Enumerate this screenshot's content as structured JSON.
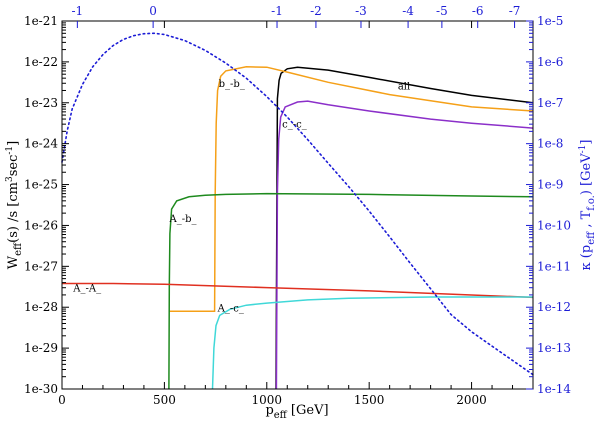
{
  "chart_data": {
    "type": "line",
    "xlabel": {
      "main": "p",
      "sub": "eff",
      "rest": " [GeV]"
    },
    "ylabel_left": {
      "p1": "W",
      "s1": "eff",
      "p2": "(s) /s    [cm",
      "sup1": "3",
      "p3": "sec",
      "sup2": "-1",
      "p4": "]"
    },
    "ylabel_right": {
      "p1": "κ (p",
      "s1": "eff",
      "p2": " , T",
      "s2": "f.o.",
      "p3": ")    [GeV",
      "sup1": "-1",
      "p4": "]"
    },
    "xlim": [
      0,
      2300
    ],
    "ylim_left_log10": [
      -30,
      -21
    ],
    "ylim_right_log10": [
      -14,
      -5
    ],
    "x_ticks": [
      0,
      500,
      1000,
      1500,
      2000
    ],
    "x_tick_labels": [
      "0",
      "500",
      "1000",
      "1500",
      "2000"
    ],
    "y_left_tick_labels": [
      "1e-21",
      "1e-22",
      "1e-23",
      "1e-24",
      "1e-25",
      "1e-26",
      "1e-27",
      "1e-28",
      "1e-29",
      "1e-30"
    ],
    "y_right_tick_labels": [
      "1e-5",
      "1e-6",
      "1e-7",
      "1e-8",
      "1e-9",
      "1e-10",
      "1e-11",
      "1e-12",
      "1e-13",
      "1e-14"
    ],
    "top_axis": {
      "color": "#1c1cd6",
      "ticks": [
        {
          "x": 75,
          "label": "-1"
        },
        {
          "x": 445,
          "label": "0"
        },
        {
          "x": 1050,
          "label": "-1"
        },
        {
          "x": 1240,
          "label": "-2"
        },
        {
          "x": 1460,
          "label": "-3"
        },
        {
          "x": 1690,
          "label": "-4"
        },
        {
          "x": 1855,
          "label": "-5"
        },
        {
          "x": 2030,
          "label": "-6"
        },
        {
          "x": 2210,
          "label": "-7"
        }
      ]
    },
    "series": [
      {
        "name": "all",
        "color": "#000000",
        "axis": "left",
        "points": [
          [
            1045,
            -30
          ],
          [
            1052,
            -22.9
          ],
          [
            1060,
            -22.45
          ],
          [
            1070,
            -22.28
          ],
          [
            1100,
            -22.17
          ],
          [
            1150,
            -22.13
          ],
          [
            1300,
            -22.2
          ],
          [
            1500,
            -22.38
          ],
          [
            1800,
            -22.65
          ],
          [
            2000,
            -22.82
          ],
          [
            2300,
            -23.0
          ]
        ]
      },
      {
        "name": "b_-b_",
        "color": "#f5a018",
        "axis": "left",
        "points": [
          [
            520,
            -28.1
          ],
          [
            745,
            -28.1
          ],
          [
            748,
            -25.2
          ],
          [
            753,
            -23.5
          ],
          [
            760,
            -22.7
          ],
          [
            775,
            -22.35
          ],
          [
            800,
            -22.22
          ],
          [
            900,
            -22.12
          ],
          [
            1000,
            -22.13
          ],
          [
            1100,
            -22.25
          ],
          [
            1300,
            -22.5
          ],
          [
            1600,
            -22.8
          ],
          [
            2000,
            -23.1
          ],
          [
            2300,
            -23.2
          ]
        ]
      },
      {
        "name": "c_-c_",
        "color": "#8b2fc9",
        "axis": "left",
        "points": [
          [
            1047,
            -30
          ],
          [
            1052,
            -25.2
          ],
          [
            1058,
            -23.9
          ],
          [
            1068,
            -23.35
          ],
          [
            1090,
            -23.1
          ],
          [
            1150,
            -22.98
          ],
          [
            1200,
            -22.96
          ],
          [
            1300,
            -23.05
          ],
          [
            1500,
            -23.2
          ],
          [
            1800,
            -23.4
          ],
          [
            2000,
            -23.5
          ],
          [
            2300,
            -23.62
          ]
        ]
      },
      {
        "name": "A_-b_",
        "color": "#1e8a1e",
        "axis": "left",
        "points": [
          [
            522,
            -30
          ],
          [
            524,
            -27.5
          ],
          [
            527,
            -26.2
          ],
          [
            535,
            -25.6
          ],
          [
            560,
            -25.4
          ],
          [
            620,
            -25.3
          ],
          [
            700,
            -25.26
          ],
          [
            800,
            -25.24
          ],
          [
            1000,
            -25.22
          ],
          [
            1500,
            -25.24
          ],
          [
            2000,
            -25.28
          ],
          [
            2300,
            -25.3
          ]
        ]
      },
      {
        "name": "A_-A_",
        "color": "#e03020",
        "axis": "left",
        "points": [
          [
            0,
            -27.42
          ],
          [
            250,
            -27.42
          ],
          [
            500,
            -27.44
          ],
          [
            1000,
            -27.52
          ],
          [
            1500,
            -27.6
          ],
          [
            2000,
            -27.7
          ],
          [
            2300,
            -27.76
          ]
        ]
      },
      {
        "name": "A_-c_",
        "color": "#40d8d8",
        "axis": "left",
        "points": [
          [
            735,
            -30
          ],
          [
            742,
            -29.0
          ],
          [
            752,
            -28.45
          ],
          [
            770,
            -28.2
          ],
          [
            820,
            -28.05
          ],
          [
            900,
            -27.95
          ],
          [
            1000,
            -27.9
          ],
          [
            1200,
            -27.82
          ],
          [
            1400,
            -27.78
          ],
          [
            1800,
            -27.75
          ],
          [
            2300,
            -27.75
          ]
        ]
      },
      {
        "name": "",
        "color": "#1c1cd6",
        "axis": "right",
        "dashed": true,
        "points": [
          [
            0,
            -8.45
          ],
          [
            25,
            -7.7
          ],
          [
            50,
            -7.15
          ],
          [
            100,
            -6.55
          ],
          [
            150,
            -6.12
          ],
          [
            200,
            -5.82
          ],
          [
            250,
            -5.6
          ],
          [
            300,
            -5.45
          ],
          [
            350,
            -5.36
          ],
          [
            400,
            -5.31
          ],
          [
            450,
            -5.3
          ],
          [
            500,
            -5.33
          ],
          [
            600,
            -5.48
          ],
          [
            700,
            -5.72
          ],
          [
            800,
            -6.03
          ],
          [
            900,
            -6.4
          ],
          [
            1000,
            -6.85
          ],
          [
            1100,
            -7.35
          ],
          [
            1200,
            -7.9
          ],
          [
            1300,
            -8.48
          ],
          [
            1400,
            -9.05
          ],
          [
            1500,
            -9.65
          ],
          [
            1600,
            -10.28
          ],
          [
            1700,
            -10.92
          ],
          [
            1800,
            -11.55
          ],
          [
            1900,
            -12.18
          ],
          [
            2000,
            -12.6
          ],
          [
            2100,
            -12.95
          ],
          [
            2200,
            -13.3
          ],
          [
            2300,
            -13.65
          ]
        ]
      }
    ],
    "curve_labels": [
      {
        "text": "all",
        "x": 1640,
        "y": -22.68,
        "color": "#000000"
      },
      {
        "text": "b_-b_",
        "x": 765,
        "y": -22.62,
        "color": "#000000"
      },
      {
        "text": "c_-c_",
        "x": 1075,
        "y": -23.6,
        "color": "#000000"
      },
      {
        "text": "A_-b_",
        "x": 525,
        "y": -25.92,
        "color": "#000000"
      },
      {
        "text": "A_-A_",
        "x": 55,
        "y": -27.62,
        "color": "#000000"
      },
      {
        "text": "A_-c_",
        "x": 760,
        "y": -28.1,
        "color": "#000000"
      }
    ],
    "colors": {
      "frame": "#000000",
      "right_axis": "#1c1cd6"
    },
    "grid": false
  }
}
